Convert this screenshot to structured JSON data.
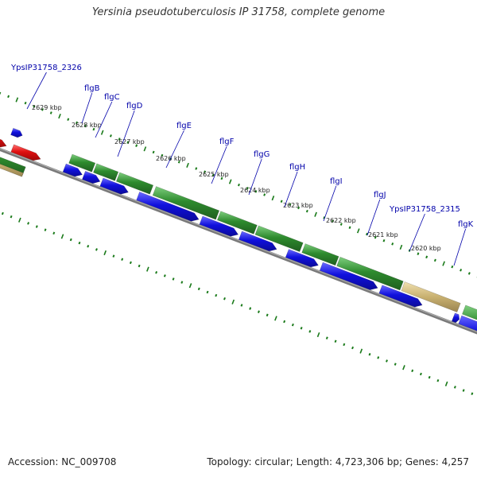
{
  "title": "Yersinia pseudotuberculosis IP 31758, complete genome",
  "accession": "Accession: NC_009708",
  "summary": "Topology: circular; Length: 4,723,306 bp; Genes: 4,257",
  "colors": {
    "backbone": "#7a7a7a",
    "ticks": "#1a7a1a",
    "gene_green": "#2e8b2e",
    "gene_blue": "#1010dd",
    "gene_red": "#e01010",
    "gene_tan": "#c8b070",
    "label": "#0000aa"
  },
  "kbp_ticks": [
    {
      "label": "2629 kbp",
      "kbp": 2629
    },
    {
      "label": "2628 kbp",
      "kbp": 2628
    },
    {
      "label": "2627 kbp",
      "kbp": 2627
    },
    {
      "label": "2626 kbp",
      "kbp": 2626
    },
    {
      "label": "2625 kbp",
      "kbp": 2625
    },
    {
      "label": "2624 kbp",
      "kbp": 2624
    },
    {
      "label": "2623 kbp",
      "kbp": 2623
    },
    {
      "label": "2622 kbp",
      "kbp": 2622
    },
    {
      "label": "2621 kbp",
      "kbp": 2621
    },
    {
      "label": "2620 kbp",
      "kbp": 2620
    }
  ],
  "gene_labels": [
    {
      "name": "YpsIP31758_2326"
    },
    {
      "name": "flgB"
    },
    {
      "name": "flgC"
    },
    {
      "name": "flgD"
    },
    {
      "name": "flgE"
    },
    {
      "name": "flgF"
    },
    {
      "name": "flgG"
    },
    {
      "name": "flgH"
    },
    {
      "name": "flgI"
    },
    {
      "name": "flgJ"
    },
    {
      "name": "YpsIP31758_2315"
    },
    {
      "name": "flgK"
    }
  ]
}
